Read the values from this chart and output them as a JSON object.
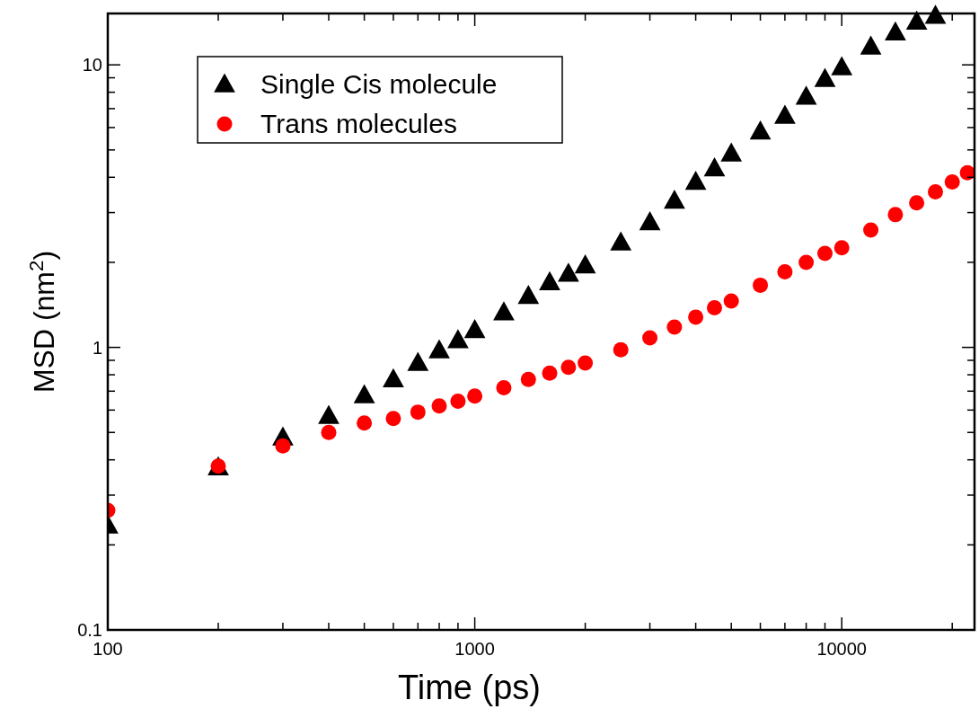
{
  "chart_data": {
    "type": "scatter",
    "xlabel": "Time (ps)",
    "ylabel": "MSD (nm$^{2}$)",
    "log": "xy",
    "legend": "top left",
    "grid": false,
    "xlim": [
      100,
      23000
    ],
    "ylim": [
      0.1,
      15.2
    ],
    "xticks": [
      100,
      {
        "value": 200,
        "label": null
      },
      {
        "value": 300,
        "label": null
      },
      {
        "value": 400,
        "label": null
      },
      {
        "value": 500,
        "label": null
      },
      {
        "value": 600,
        "label": null
      },
      {
        "value": 700,
        "label": null
      },
      {
        "value": 800,
        "label": null
      },
      {
        "value": 900,
        "label": null
      },
      1000,
      {
        "value": 2000,
        "label": null
      },
      {
        "value": 3000,
        "label": null
      },
      {
        "value": 4000,
        "label": null
      },
      {
        "value": 5000,
        "label": null
      },
      {
        "value": 6000,
        "label": null
      },
      {
        "value": 7000,
        "label": null
      },
      {
        "value": 8000,
        "label": null
      },
      {
        "value": 9000,
        "label": null
      },
      10000,
      {
        "value": 20000,
        "label": null
      }
    ],
    "yticks": [
      0.1,
      {
        "value": 0.2,
        "label": null
      },
      {
        "value": 0.3,
        "label": null
      },
      {
        "value": 0.4,
        "label": null
      },
      {
        "value": 0.5,
        "label": null
      },
      {
        "value": 0.6,
        "label": null
      },
      {
        "value": 0.7,
        "label": null
      },
      {
        "value": 0.8,
        "label": null
      },
      {
        "value": 0.9,
        "label": null
      },
      1,
      {
        "value": 2,
        "label": null
      },
      {
        "value": 3,
        "label": null
      },
      {
        "value": 4,
        "label": null
      },
      {
        "value": 5,
        "label": null
      },
      {
        "value": 6,
        "label": null
      },
      {
        "value": 7,
        "label": null
      },
      {
        "value": 8,
        "label": null
      },
      {
        "value": 9,
        "label": null
      },
      10
    ],
    "series": [
      {
        "name": "Single Cis molecule",
        "color": "#000000",
        "marker": "triangle",
        "x": [
          100,
          200,
          300,
          400,
          500,
          600,
          700,
          800,
          900,
          1000,
          1200,
          1400,
          1600,
          1800,
          2000,
          2500,
          3000,
          3500,
          4000,
          4500,
          5000,
          6000,
          7000,
          8000,
          9000,
          10000,
          12000,
          14000,
          16000,
          18000
        ],
        "values": [
          0.234,
          0.376,
          0.479,
          0.571,
          0.676,
          0.77,
          0.88,
          0.975,
          1.06,
          1.15,
          1.33,
          1.52,
          1.7,
          1.82,
          1.95,
          2.35,
          2.77,
          3.3,
          3.85,
          4.3,
          4.85,
          5.8,
          6.6,
          7.7,
          8.9,
          9.8,
          11.6,
          13.0,
          14.2,
          14.9
        ]
      },
      {
        "name": "Trans molecules",
        "color": "#ff0000",
        "marker": "circle",
        "x": [
          100,
          200,
          300,
          400,
          500,
          600,
          700,
          800,
          900,
          1000,
          1200,
          1400,
          1600,
          1800,
          2000,
          2500,
          3000,
          3500,
          4000,
          4500,
          5000,
          6000,
          7000,
          8000,
          9000,
          10000,
          12000,
          14000,
          16000,
          18000,
          20000,
          22000
        ],
        "values": [
          0.265,
          0.38,
          0.448,
          0.5,
          0.54,
          0.56,
          0.59,
          0.62,
          0.645,
          0.673,
          0.72,
          0.77,
          0.81,
          0.85,
          0.88,
          0.98,
          1.08,
          1.18,
          1.28,
          1.38,
          1.46,
          1.66,
          1.85,
          2.0,
          2.15,
          2.25,
          2.6,
          2.95,
          3.25,
          3.55,
          3.85,
          4.15
        ]
      }
    ]
  }
}
